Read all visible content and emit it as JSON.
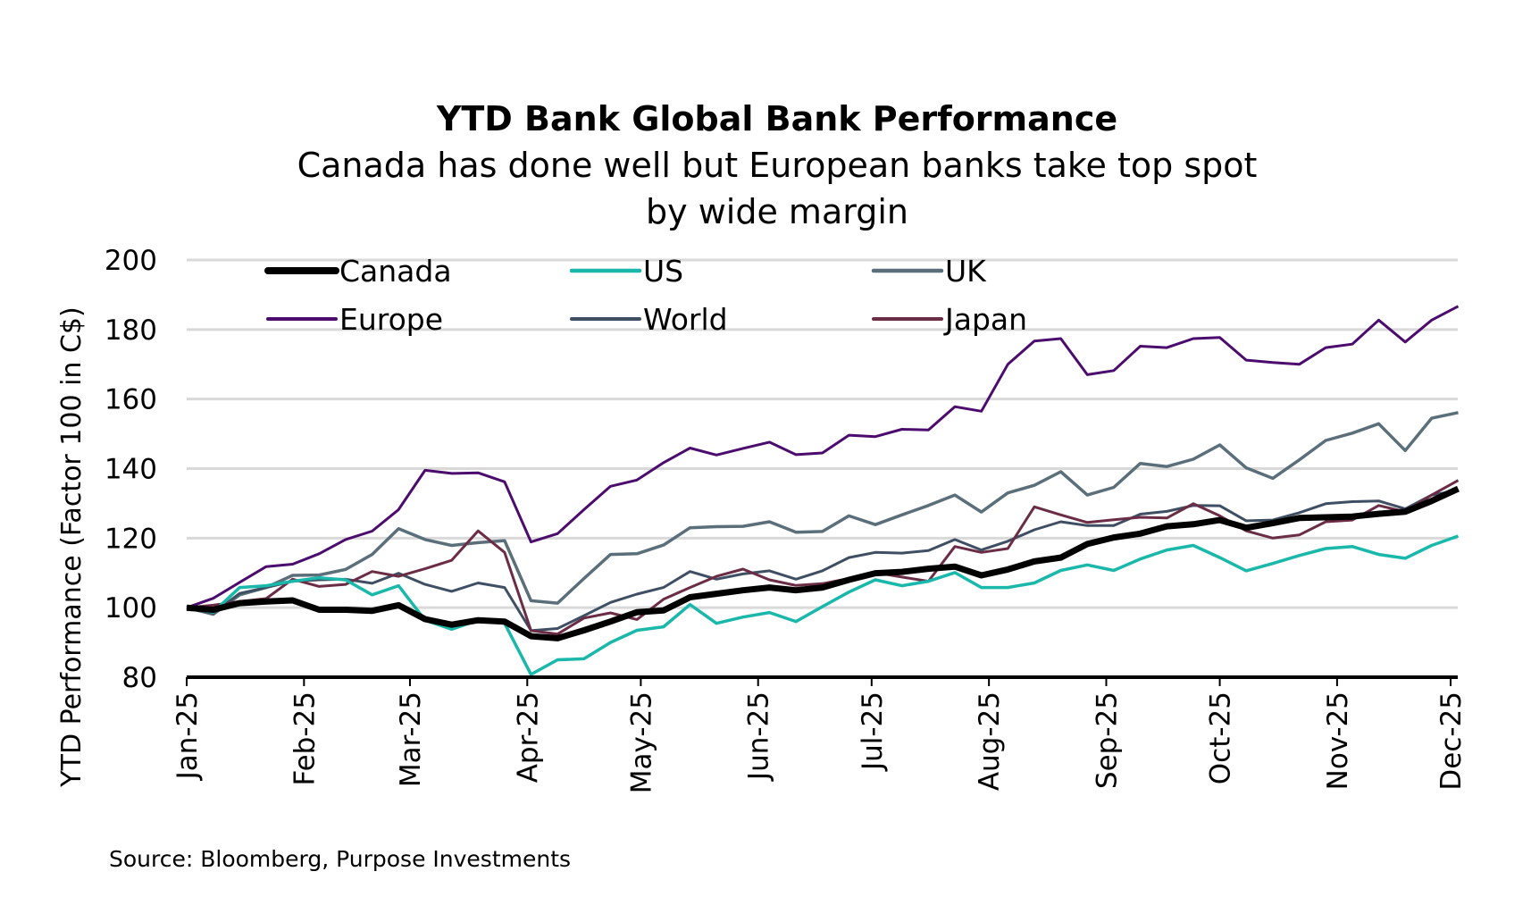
{
  "chart_data": {
    "type": "line",
    "title": "YTD Bank Global Bank Performance",
    "subtitle": [
      "Canada has done well but European banks take top spot",
      "by wide margin"
    ],
    "ylabel": "YTD Performance (Factor 100 in C$)",
    "xlabel": "",
    "ylim": [
      80,
      200
    ],
    "yticks": [
      80,
      100,
      120,
      140,
      160,
      180,
      200
    ],
    "grid": true,
    "legend_placement": "top-left, inside plot, 3 columns",
    "xticks": [
      {
        "date": "2025-01-01",
        "label": "Jan-25"
      },
      {
        "date": "2025-02-01",
        "label": "Feb-25"
      },
      {
        "date": "2025-03-01",
        "label": "Mar-25"
      },
      {
        "date": "2025-04-01",
        "label": "Apr-25"
      },
      {
        "date": "2025-05-01",
        "label": "May-25"
      },
      {
        "date": "2025-06-01",
        "label": "Jun-25"
      },
      {
        "date": "2025-07-01",
        "label": "Jul-25"
      },
      {
        "date": "2025-08-01",
        "label": "Aug-25"
      },
      {
        "date": "2025-09-01",
        "label": "Sep-25"
      },
      {
        "date": "2025-10-01",
        "label": "Oct-25"
      },
      {
        "date": "2025-11-01",
        "label": "Nov-25"
      },
      {
        "date": "2025-12-01",
        "label": "Dec-25"
      }
    ],
    "x": [
      "2025-01-01",
      "2025-01-08",
      "2025-01-15",
      "2025-01-22",
      "2025-01-29",
      "2025-02-05",
      "2025-02-12",
      "2025-02-19",
      "2025-02-26",
      "2025-03-05",
      "2025-03-12",
      "2025-03-19",
      "2025-03-26",
      "2025-04-02",
      "2025-04-09",
      "2025-04-16",
      "2025-04-23",
      "2025-04-30",
      "2025-05-07",
      "2025-05-14",
      "2025-05-21",
      "2025-05-28",
      "2025-06-04",
      "2025-06-11",
      "2025-06-18",
      "2025-06-25",
      "2025-07-02",
      "2025-07-09",
      "2025-07-16",
      "2025-07-23",
      "2025-07-30",
      "2025-08-06",
      "2025-08-13",
      "2025-08-20",
      "2025-08-27",
      "2025-09-03",
      "2025-09-10",
      "2025-09-17",
      "2025-09-24",
      "2025-10-01",
      "2025-10-08",
      "2025-10-15",
      "2025-10-22",
      "2025-10-29",
      "2025-11-05",
      "2025-11-12",
      "2025-11-19",
      "2025-11-26",
      "2025-12-03"
    ],
    "series": [
      {
        "name": "Canada",
        "color": "#000000",
        "width": "thick",
        "values": [
          100,
          99.4,
          101.3,
          101.8,
          102.1,
          99.4,
          99.4,
          99.1,
          100.7,
          96.7,
          95.1,
          96.4,
          96.0,
          91.8,
          91.2,
          93.5,
          96.0,
          98.7,
          99.2,
          103.0,
          104.0,
          105.0,
          105.8,
          105.0,
          105.8,
          108.0,
          109.9,
          110.3,
          111.2,
          111.8,
          109.3,
          111.0,
          113.3,
          114.4,
          118.3,
          120.2,
          121.3,
          123.4,
          124.0,
          125.2,
          123.0,
          124.3,
          125.8,
          126.0,
          126.2,
          127.0,
          127.6,
          130.7,
          134.2
        ]
      },
      {
        "name": "US",
        "color": "#1ab8aa",
        "width": "medium",
        "values": [
          100,
          98.7,
          105.8,
          106.3,
          107.6,
          108.6,
          108.0,
          103.7,
          106.3,
          96.4,
          93.8,
          96.4,
          95.5,
          80.8,
          85.0,
          85.3,
          90.0,
          93.5,
          94.5,
          100.9,
          95.5,
          97.3,
          98.6,
          96.0,
          100.3,
          104.5,
          108.0,
          106.3,
          107.6,
          110.1,
          105.8,
          105.8,
          107.1,
          110.7,
          112.3,
          110.7,
          114.0,
          116.6,
          117.9,
          114.4,
          110.6,
          112.7,
          115.0,
          117.0,
          117.6,
          115.3,
          114.2,
          117.9,
          120.6
        ]
      },
      {
        "name": "UK",
        "color": "#5b6f7a",
        "width": "medium",
        "values": [
          100,
          98.1,
          103.7,
          105.8,
          109.3,
          109.4,
          111.0,
          115.3,
          122.7,
          119.6,
          117.9,
          118.7,
          119.3,
          102.0,
          101.3,
          108.4,
          115.3,
          115.5,
          118.0,
          123.0,
          123.3,
          123.4,
          124.7,
          121.7,
          121.9,
          126.4,
          123.9,
          126.7,
          129.4,
          132.4,
          127.5,
          133.0,
          135.2,
          139.1,
          132.4,
          134.6,
          141.5,
          140.6,
          142.7,
          146.8,
          140.2,
          137.2,
          142.5,
          148.1,
          150.2,
          152.9,
          145.2,
          154.5,
          156.1
        ]
      },
      {
        "name": "Europe",
        "color": "#4b0c6e",
        "width": "thin",
        "values": [
          100,
          102.7,
          107.3,
          111.8,
          112.5,
          115.5,
          119.6,
          122.0,
          128.2,
          139.5,
          138.6,
          138.8,
          136.2,
          118.9,
          121.3,
          128.2,
          134.9,
          136.7,
          141.7,
          145.9,
          143.9,
          145.8,
          147.6,
          144.0,
          144.5,
          149.6,
          149.2,
          151.3,
          151.1,
          157.8,
          156.5,
          170.0,
          176.7,
          177.4,
          167.0,
          168.2,
          175.2,
          174.8,
          177.4,
          177.7,
          171.2,
          170.5,
          170.0,
          174.8,
          175.8,
          182.7,
          176.4,
          182.7,
          186.7
        ]
      },
      {
        "name": "World",
        "color": "#3f4f63",
        "width": "thin",
        "values": [
          100,
          98.4,
          104.1,
          105.8,
          107.6,
          108.0,
          108.2,
          107.0,
          109.9,
          106.7,
          104.7,
          107.1,
          105.8,
          93.4,
          94.0,
          97.7,
          101.5,
          103.9,
          105.8,
          110.4,
          108.2,
          109.7,
          110.6,
          108.2,
          110.6,
          114.4,
          115.9,
          115.7,
          116.4,
          119.6,
          116.6,
          119.1,
          122.4,
          124.7,
          123.6,
          123.6,
          126.9,
          127.7,
          129.4,
          129.3,
          125.0,
          125.2,
          127.3,
          129.9,
          130.5,
          130.7,
          128.4,
          132.4,
          133.7
        ]
      },
      {
        "name": "Japan",
        "color": "#6b2c45",
        "width": "thin",
        "values": [
          100,
          100.7,
          101.8,
          102.6,
          108.2,
          106.1,
          106.7,
          110.4,
          109.0,
          111.2,
          113.6,
          122.1,
          115.9,
          93.4,
          92.4,
          97.0,
          98.5,
          96.6,
          102.4,
          105.8,
          109.0,
          111.1,
          108.0,
          106.4,
          106.9,
          108.4,
          110.1,
          108.8,
          107.6,
          117.6,
          115.9,
          117.0,
          129.0,
          126.7,
          124.5,
          125.3,
          126.0,
          125.8,
          129.9,
          126.4,
          122.1,
          120.0,
          120.9,
          124.7,
          125.2,
          129.4,
          127.6,
          132.4,
          136.6
        ]
      }
    ],
    "source": "Source: Bloomberg, Purpose Investments"
  }
}
